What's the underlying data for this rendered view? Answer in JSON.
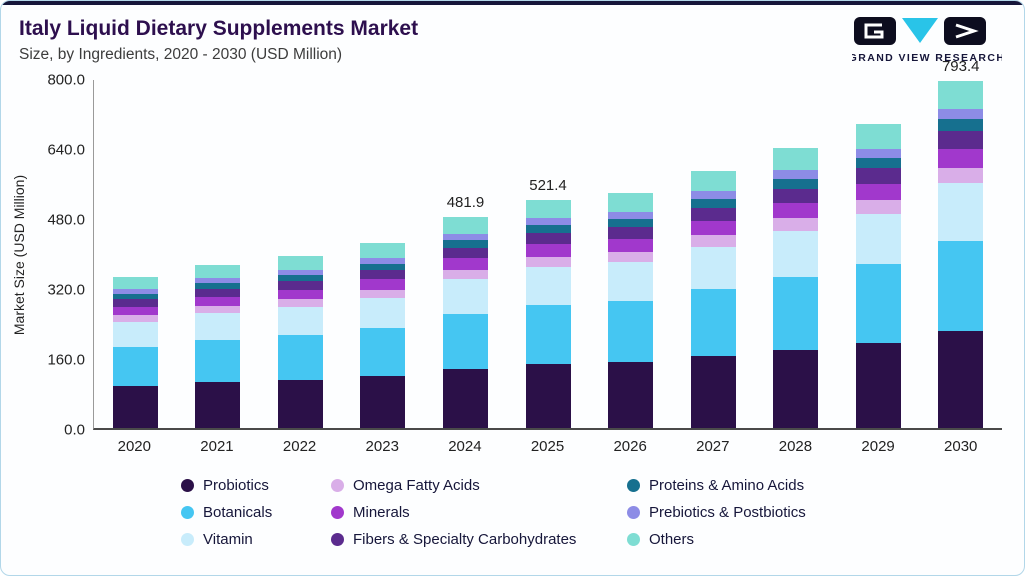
{
  "header": {
    "title": "Italy Liquid Dietary Supplements Market",
    "subtitle": "Size, by Ingredients, 2020 - 2030 (USD Million)",
    "logo_text": "GRAND VIEW RESEARCH"
  },
  "brand": {
    "accent_cyan": "#29c4e8",
    "dark_navy": "#16163a"
  },
  "chart_data": {
    "type": "bar",
    "stacked": true,
    "title": "Italy Liquid Dietary Supplements Market Size, by Ingredients, 2020 - 2030 (USD Million)",
    "xlabel": "",
    "ylabel": "Market Size (USD Million)",
    "ylim": [
      0,
      800
    ],
    "yticks": [
      "800.0",
      "640.0",
      "480.0",
      "320.0",
      "160.0",
      "0.0"
    ],
    "grid": false,
    "legend_position": "bottom",
    "categories": [
      "2020",
      "2021",
      "2022",
      "2023",
      "2024",
      "2025",
      "2026",
      "2027",
      "2028",
      "2029",
      "2030"
    ],
    "series": [
      {
        "name": "Probiotics",
        "color": "#2b1048",
        "values": [
          96.6,
          104.2,
          110.0,
          118.2,
          134.9,
          146.0,
          150.6,
          164.6,
          179.2,
          194.3,
          222.2
        ]
      },
      {
        "name": "Botanicals",
        "color": "#45c6f2",
        "values": [
          89.7,
          96.7,
          102.2,
          109.7,
          125.3,
          135.6,
          139.9,
          152.9,
          166.4,
          180.4,
          206.3
        ]
      },
      {
        "name": "Vitamin",
        "color": "#c8ecfb",
        "values": [
          56.9,
          61.4,
          64.8,
          69.6,
          79.5,
          86.0,
          88.8,
          97.0,
          105.6,
          114.5,
          130.9
        ]
      },
      {
        "name": "Omega Fatty Acids",
        "color": "#d9aee8",
        "values": [
          15.5,
          16.7,
          17.7,
          19.0,
          21.7,
          23.5,
          24.2,
          26.5,
          28.8,
          31.2,
          35.7
        ]
      },
      {
        "name": "Minerals",
        "color": "#a138cc",
        "values": [
          19.0,
          20.5,
          21.6,
          23.2,
          26.5,
          28.7,
          29.6,
          32.3,
          35.2,
          38.2,
          43.6
        ]
      },
      {
        "name": "Fibers & Specialty Carbohydrates",
        "color": "#5b2b8e",
        "values": [
          17.3,
          18.6,
          19.7,
          21.1,
          24.1,
          26.1,
          26.9,
          29.4,
          32.0,
          34.7,
          39.7
        ]
      },
      {
        "name": "Proteins & Amino Acids",
        "color": "#16708f",
        "values": [
          12.1,
          13.0,
          13.8,
          14.8,
          16.9,
          18.2,
          18.8,
          20.6,
          22.4,
          24.3,
          27.8
        ]
      },
      {
        "name": "Prebiotics & Postbiotics",
        "color": "#8d8ce6",
        "values": [
          10.4,
          11.2,
          11.8,
          12.7,
          14.5,
          15.6,
          16.1,
          17.6,
          19.2,
          20.8,
          23.8
        ]
      },
      {
        "name": "Others",
        "color": "#7eddd3",
        "values": [
          27.6,
          29.8,
          31.4,
          33.8,
          38.5,
          41.7,
          43.0,
          47.0,
          51.2,
          55.5,
          63.4
        ]
      }
    ],
    "total_labels": {
      "2024": "481.9",
      "2025": "521.4",
      "2030": "793.4"
    }
  }
}
